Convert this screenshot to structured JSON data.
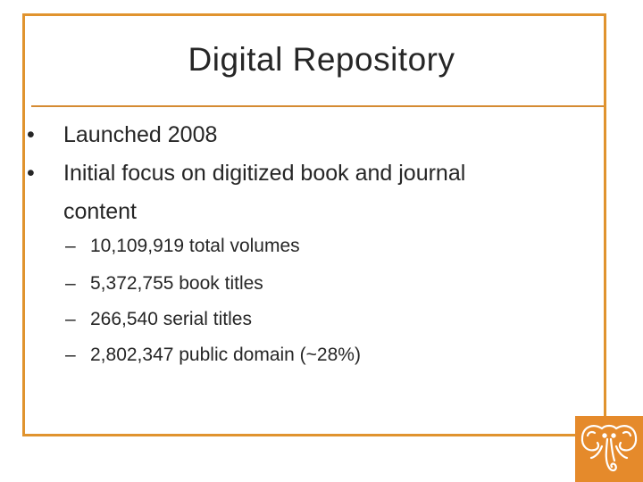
{
  "slide": {
    "title": "Digital Repository",
    "bullets": [
      {
        "marker": "•",
        "text": "Launched 2008"
      },
      {
        "marker": "•",
        "text": "Initial focus on digitized book and journal",
        "continuation": "content"
      }
    ],
    "sub_bullets": [
      {
        "marker": "–",
        "text": "10,109,919 total volumes"
      },
      {
        "marker": "–",
        "text": "5,372,755 book titles"
      },
      {
        "marker": "–",
        "text": "266,540 serial titles"
      },
      {
        "marker": "–",
        "text": "2,802,347 public domain (~28%)"
      }
    ]
  },
  "colors": {
    "frame": "#e0932e",
    "rule": "#d58b32",
    "logo_bg": "#e58a2b",
    "text": "#262626"
  },
  "logo": {
    "icon": "elephant-logo-icon"
  }
}
